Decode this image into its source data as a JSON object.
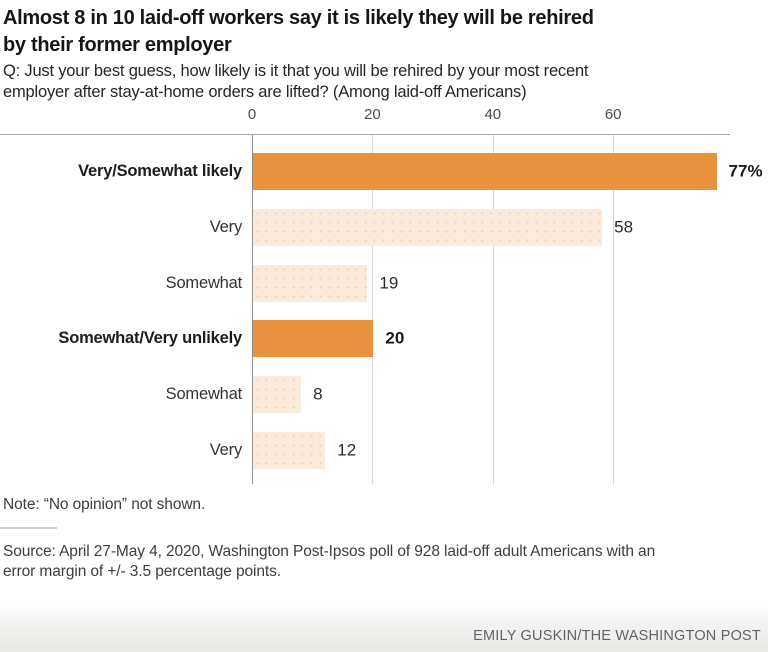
{
  "header": {
    "title_lines": [
      "Almost 8 in 10 laid-off workers say it is likely they will be rehired",
      "by their former employer"
    ],
    "question_lines": [
      "Q: Just your best guess, how likely is it that you will be rehired by your most recent",
      "employer after stay-at-home orders are lifted? (Among laid-off Americans)"
    ]
  },
  "chart_data": {
    "type": "bar",
    "orientation": "horizontal",
    "title": "Almost 8 in 10 laid-off workers say it is likely they will be rehired by their former employer",
    "xlabel": "",
    "ylabel": "",
    "xlim": [
      0,
      79
    ],
    "ticks": [
      0,
      20,
      40,
      60
    ],
    "grid": "vertical",
    "categories": [
      "Very/Somewhat likely",
      "Very",
      "Somewhat",
      "Somewhat/Very unlikely",
      "Somewhat",
      "Very"
    ],
    "values": [
      77,
      58,
      19,
      20,
      8,
      12
    ],
    "bars": [
      {
        "label": "Very/Somewhat likely",
        "value": 77,
        "display": "77%",
        "emphasis": true
      },
      {
        "label": "Very",
        "value": 58,
        "display": "58",
        "emphasis": false
      },
      {
        "label": "Somewhat",
        "value": 19,
        "display": "19",
        "emphasis": false
      },
      {
        "label": "Somewhat/Very unlikely",
        "value": 20,
        "display": "20",
        "emphasis": true
      },
      {
        "label": "Somewhat",
        "value": 8,
        "display": "8",
        "emphasis": false
      },
      {
        "label": "Very",
        "value": 12,
        "display": "12",
        "emphasis": false
      }
    ],
    "colors": {
      "bar_emphasis": "#e8913e",
      "bar_light": "#fbebdc",
      "axis_line": "#8f8f8f",
      "gridline": "#d6d6d6"
    }
  },
  "footer": {
    "note": "Note: “No opinion” not shown.",
    "source_lines": [
      "Source: April 27-May 4, 2020, Washington Post-Ipsos poll of 928 laid-off adult Americans with an",
      "error margin of +/- 3.5 percentage points."
    ],
    "credit": "EMILY GUSKIN/THE WASHINGTON POST"
  }
}
